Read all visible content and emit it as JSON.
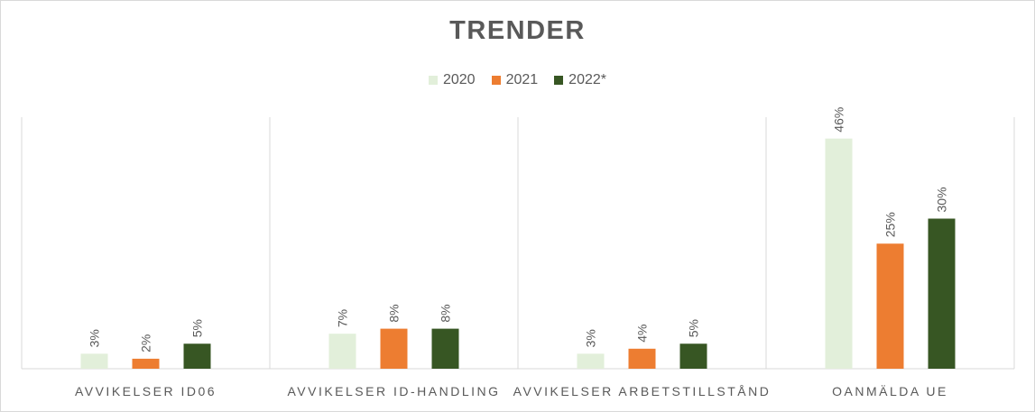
{
  "chart_data": {
    "type": "bar",
    "title": "TRENDER",
    "categories": [
      "AVVIKELSER ID06",
      "AVVIKELSER ID-HANDLING",
      "AVVIKELSER ARBETSTILLSTÅND",
      "OANMÄLDA UE"
    ],
    "series": [
      {
        "name": "2020",
        "color": "#e2efda",
        "values": [
          3,
          7,
          3,
          46
        ],
        "labels": [
          "3%",
          "7%",
          "3%",
          "46%"
        ]
      },
      {
        "name": "2021",
        "color": "#ed7d31",
        "values": [
          2,
          8,
          4,
          25
        ],
        "labels": [
          "2%",
          "8%",
          "4%",
          "25%"
        ]
      },
      {
        "name": "2022*",
        "color": "#375623",
        "values": [
          5,
          8,
          5,
          30
        ],
        "labels": [
          "5%",
          "8%",
          "5%",
          "30%"
        ]
      }
    ],
    "ylim": [
      0,
      50
    ],
    "xlabel": "",
    "ylabel": "",
    "legend_position": "top",
    "grid": false
  }
}
